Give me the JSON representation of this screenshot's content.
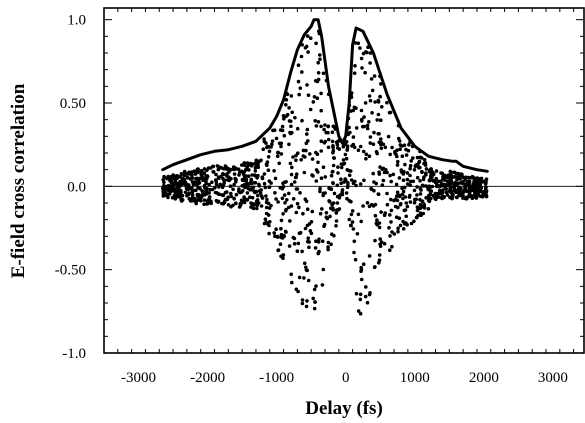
{
  "chart_data": {
    "type": "scatter",
    "title": "",
    "xlabel": "Delay (fs)",
    "ylabel": "E-field cross correlation",
    "xlim": [
      -3500,
      3450
    ],
    "ylim": [
      -1.0,
      1.07
    ],
    "x_ticks": [
      -3000,
      -2000,
      -1000,
      0,
      1000,
      2000,
      3000
    ],
    "x_tick_labels": [
      "-3000",
      "-2000",
      "-1000",
      "0",
      "1000",
      "2000",
      "3000"
    ],
    "y_ticks": [
      1.0,
      0.5,
      0.0,
      -0.5,
      -1.0
    ],
    "y_tick_labels": [
      "1.0",
      "0.50",
      "0.0",
      "-0.50",
      "-1.0"
    ],
    "grid": false,
    "legend": "none",
    "colors": {
      "points": "#000000",
      "envelope": "#000000",
      "axes": "#000000"
    },
    "zero_line": {
      "y": 0.0,
      "x_range": [
        -3500,
        3450
      ]
    },
    "series": [
      {
        "role": "envelope",
        "style": "line",
        "points": [
          [
            -2650,
            0.1
          ],
          [
            -2500,
            0.13
          ],
          [
            -2300,
            0.16
          ],
          [
            -2100,
            0.19
          ],
          [
            -1900,
            0.21
          ],
          [
            -1700,
            0.22
          ],
          [
            -1500,
            0.24
          ],
          [
            -1300,
            0.27
          ],
          [
            -1100,
            0.35
          ],
          [
            -1000,
            0.42
          ],
          [
            -900,
            0.52
          ],
          [
            -800,
            0.68
          ],
          [
            -700,
            0.82
          ],
          [
            -600,
            0.91
          ],
          [
            -560,
            0.93
          ],
          [
            -500,
            0.96
          ],
          [
            -460,
            1.0
          ],
          [
            -400,
            1.0
          ],
          [
            -350,
            0.9
          ],
          [
            -250,
            0.6
          ],
          [
            -150,
            0.4
          ],
          [
            -100,
            0.3
          ],
          [
            -50,
            0.26
          ],
          [
            0,
            0.3
          ],
          [
            50,
            0.5
          ],
          [
            100,
            0.85
          ],
          [
            150,
            0.95
          ],
          [
            250,
            0.93
          ],
          [
            400,
            0.8
          ],
          [
            600,
            0.55
          ],
          [
            800,
            0.35
          ],
          [
            1000,
            0.24
          ],
          [
            1200,
            0.18
          ],
          [
            1400,
            0.16
          ],
          [
            1550,
            0.15
          ],
          [
            1600,
            0.15
          ],
          [
            1700,
            0.12
          ],
          [
            1900,
            0.1
          ],
          [
            2050,
            0.09
          ]
        ]
      },
      {
        "role": "measured-points",
        "style": "scatter",
        "envelope_lower": [
          [
            -2650,
            -0.1
          ],
          [
            -2200,
            -0.18
          ],
          [
            -1800,
            -0.2
          ],
          [
            -1400,
            -0.22
          ],
          [
            -1100,
            -0.3
          ],
          [
            -900,
            -0.48
          ],
          [
            -700,
            -0.65
          ],
          [
            -560,
            -0.78
          ],
          [
            -480,
            -0.82
          ],
          [
            -400,
            -0.72
          ],
          [
            -250,
            -0.45
          ],
          [
            -120,
            -0.2
          ],
          [
            -40,
            -0.04
          ],
          [
            0,
            0.0
          ],
          [
            60,
            -0.25
          ],
          [
            140,
            -0.62
          ],
          [
            200,
            -0.8
          ],
          [
            300,
            -0.72
          ],
          [
            500,
            -0.5
          ],
          [
            800,
            -0.28
          ],
          [
            1100,
            -0.18
          ],
          [
            1500,
            -0.13
          ],
          [
            1800,
            -0.12
          ],
          [
            2050,
            -0.1
          ]
        ],
        "x_range": [
          -2650,
          2050
        ],
        "count": 1400
      }
    ]
  }
}
